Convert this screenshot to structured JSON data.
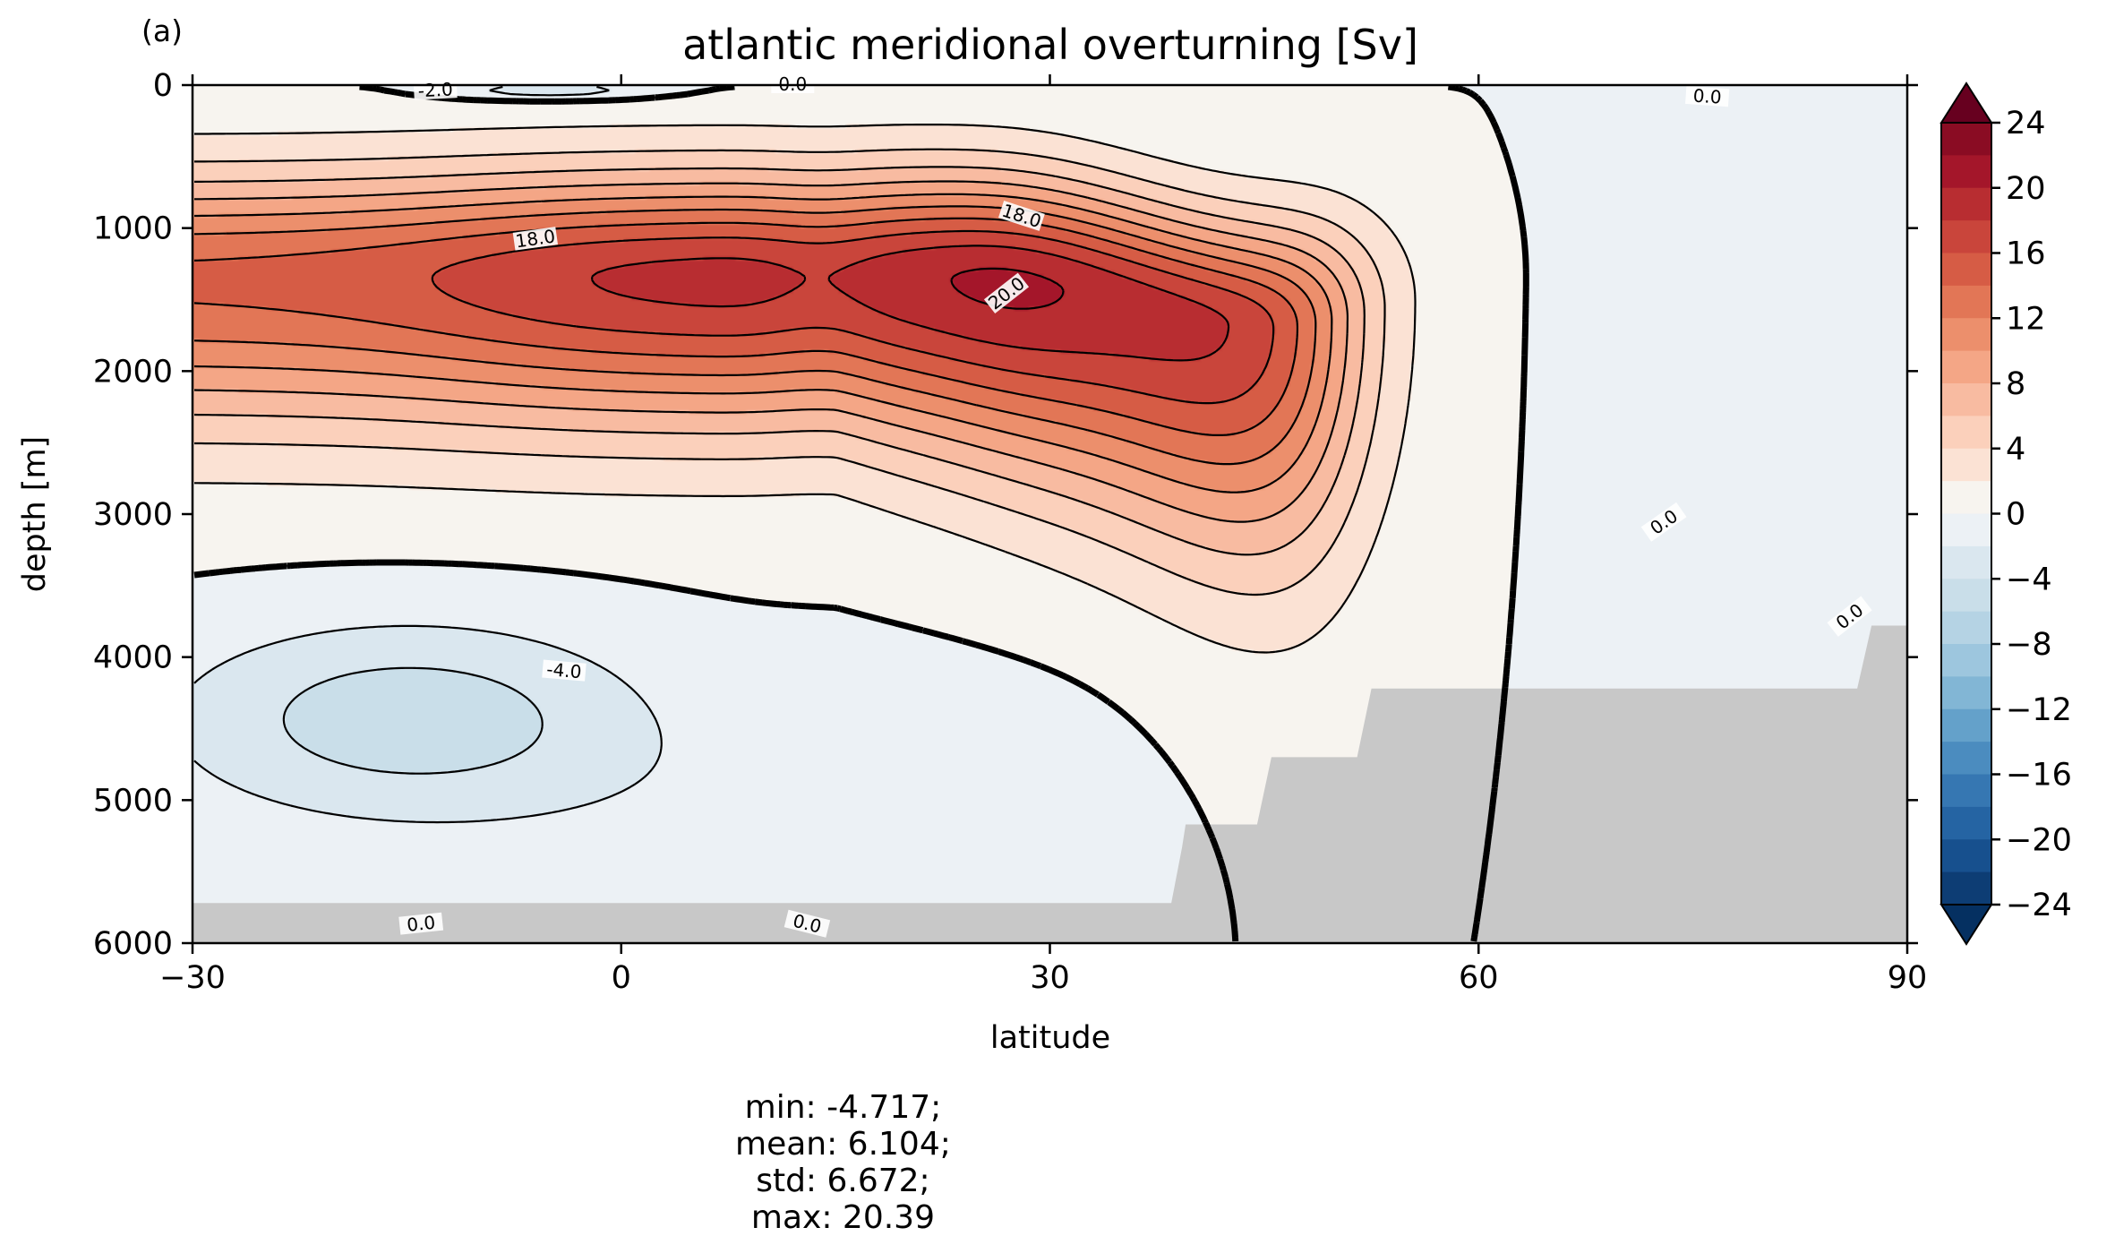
{
  "panel_label": "(a)",
  "chart_data": {
    "type": "heatmap",
    "title": "atlantic meridional overturning [Sv]",
    "xlabel": "latitude",
    "ylabel": "depth [m]",
    "xlim": [
      -30,
      90
    ],
    "ylim": [
      6000,
      0
    ],
    "x_ticks": [
      "−30",
      "0",
      "30",
      "60",
      "90"
    ],
    "y_ticks": [
      "0",
      "1000",
      "2000",
      "3000",
      "4000",
      "5000",
      "6000"
    ],
    "colorbar": {
      "colormap": "RdBu_r",
      "range": [
        -24,
        24
      ],
      "step": 2,
      "extend": "both",
      "ticks": [
        "24",
        "20",
        "16",
        "12",
        "8",
        "4",
        "0",
        "−4",
        "−8",
        "−12",
        "−16",
        "−20",
        "−24"
      ]
    },
    "contour_interval": 2,
    "zero_contour_style": "thick solid",
    "negative_contour_style": "dashed",
    "contour_labels": [
      "-2.0",
      "0.0",
      "18.0",
      "18.0",
      "20.0",
      "0.0",
      "0.0",
      "0.0",
      "-4.0",
      "0.0",
      "0.0"
    ],
    "features": {
      "max_cell_center": {
        "lat": 27,
        "depth": 1350,
        "value": 20.39
      },
      "abyssal_cell_center": {
        "lat": -15,
        "depth": 4350,
        "value": -4.717
      }
    },
    "land_mask_color": "#c8c8c8"
  },
  "stats": {
    "min": "min: -4.717;",
    "mean": "mean: 6.104;",
    "std": "std: 6.672;",
    "max": "max: 20.39"
  }
}
